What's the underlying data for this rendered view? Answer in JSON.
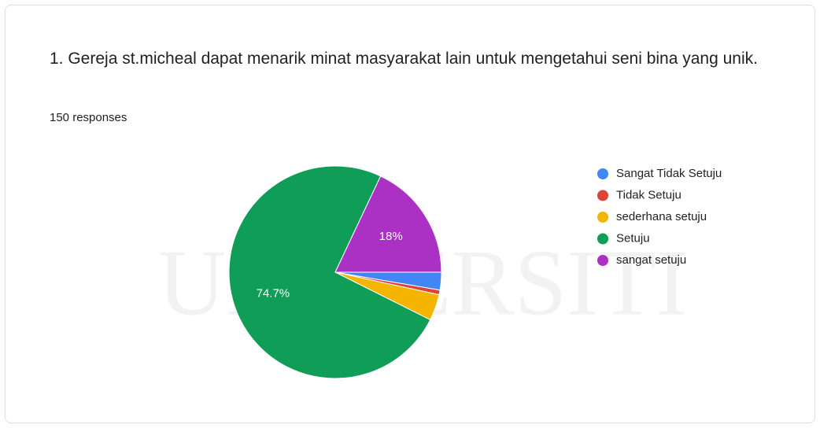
{
  "watermark": "UNIVERSITI",
  "chart_data": {
    "type": "pie",
    "title": "1. Gereja st.micheal dapat menarik minat masyarakat lain untuk mengetahui seni bina yang unik.",
    "subtitle": "150 responses",
    "categories": [
      "Sangat Tidak Setuju",
      "Tidak Setuju",
      "sederhana setuju",
      "Setuju",
      "sangat setuju"
    ],
    "values": [
      2.7,
      0.7,
      4,
      74.7,
      18
    ],
    "value_labels": [
      null,
      null,
      null,
      "74.7%",
      "18%"
    ],
    "colors": [
      "#4285f4",
      "#db4437",
      "#f4b400",
      "#0f9d58",
      "#ab30c4"
    ],
    "legend": "right"
  }
}
